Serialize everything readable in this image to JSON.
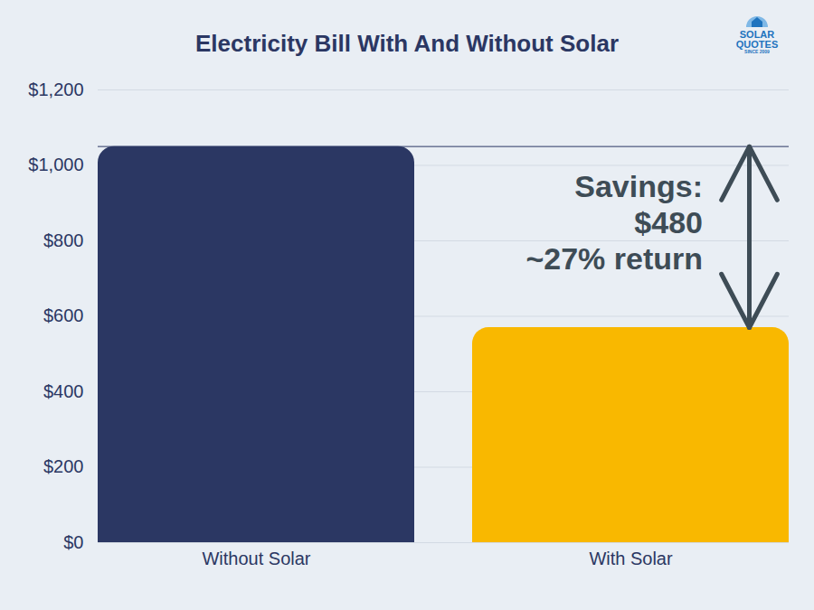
{
  "chart_data": {
    "type": "bar",
    "title": "Electricity Bill With And Without Solar",
    "categories": [
      "Without Solar",
      "With Solar"
    ],
    "values": [
      1050,
      570
    ],
    "colors": [
      "#2b3763",
      "#f9b800"
    ],
    "ylim": [
      0,
      1200
    ],
    "yticks": [
      {
        "value": 0,
        "label": "$0"
      },
      {
        "value": 200,
        "label": "$200"
      },
      {
        "value": 400,
        "label": "$400"
      },
      {
        "value": 600,
        "label": "$600"
      },
      {
        "value": 800,
        "label": "$800"
      },
      {
        "value": 1000,
        "label": "$1,000"
      },
      {
        "value": 1200,
        "label": "$1,200"
      }
    ],
    "grid": true,
    "annotation": [
      "Savings:",
      "$480",
      "~27% return"
    ],
    "logo": [
      "SOLAR",
      "QUOTES",
      "SINCE 2009"
    ]
  }
}
